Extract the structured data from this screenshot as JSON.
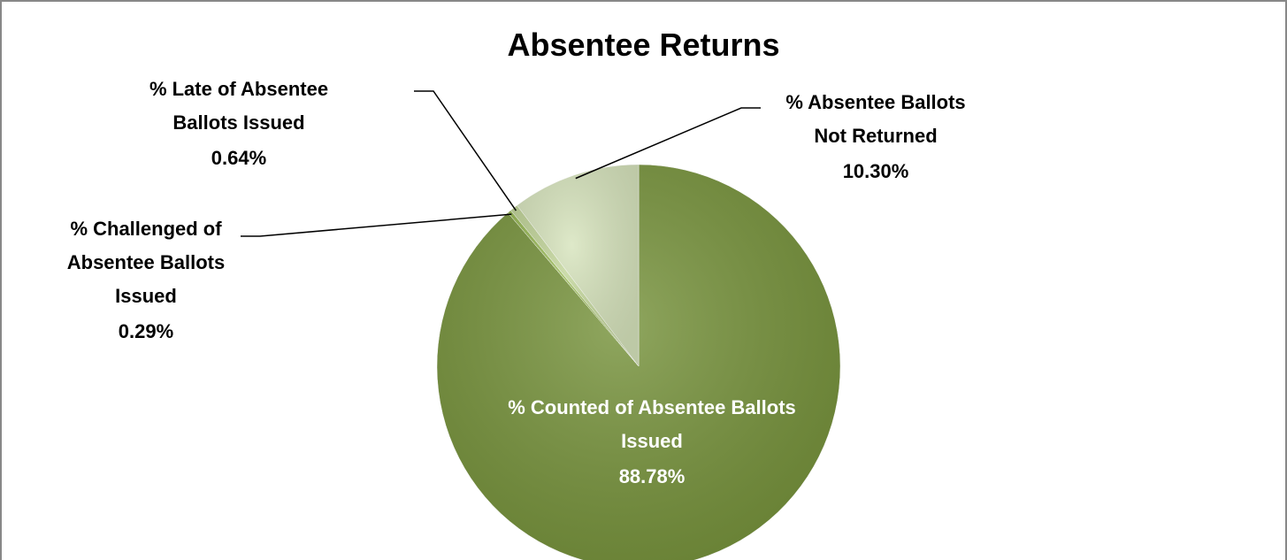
{
  "chart_data": {
    "type": "pie",
    "title": "Absentee Returns",
    "categories": [
      "% Counted of Absentee Ballots Issued",
      "% Challenged of Absentee Ballots Issued",
      "% Late of Absentee Ballots Issued",
      "% Absentee Ballots Not Returned"
    ],
    "values": [
      88.78,
      0.29,
      0.64,
      10.3
    ],
    "value_labels": [
      "88.78%",
      "0.29%",
      "0.64%",
      "10.30%"
    ],
    "colors": [
      "#77933c",
      "#9bbb59",
      "#c3d69b",
      "#d7e4bd"
    ]
  }
}
